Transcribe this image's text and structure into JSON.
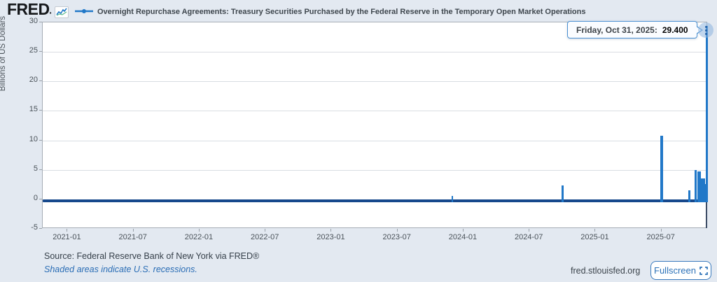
{
  "header": {
    "logo": "FRED",
    "series_title": "Overnight Repurchase Agreements: Treasury Securities Purchased by the Federal Reserve in the Temporary Open Market Operations"
  },
  "tooltip": {
    "date_label": "Friday, Oct 31, 2025:",
    "value": "29.400"
  },
  "chart_data": {
    "type": "line",
    "series_name": "Overnight Repurchase Agreements: Treasury Securities Purchased by the Federal Reserve in the Temporary Open Market Operations",
    "ylabel": "Billions of US Dollars",
    "ylim": [
      -5,
      30
    ],
    "y_ticks": [
      30,
      25,
      20,
      15,
      10,
      5,
      0,
      -5
    ],
    "x_ticks": [
      "2021-01",
      "2021-07",
      "2022-01",
      "2022-07",
      "2023-01",
      "2023-07",
      "2024-01",
      "2024-07",
      "2025-01",
      "2025-07"
    ],
    "grid": true,
    "legend_position": "top",
    "baseline_value": -0.25,
    "series_color": "#2178c8",
    "baseline_color": "#16488c",
    "spikes": [
      {
        "date": "2023-11",
        "t": 35.0,
        "value": 0.6,
        "w": 2
      },
      {
        "date": "2024-10",
        "t": 45.0,
        "value": 2.3,
        "w": 3
      },
      {
        "date": "2025-06-30",
        "t": 54.0,
        "value": 10.8,
        "w": 4
      },
      {
        "date": "2025-09-15",
        "t": 56.5,
        "value": 1.5,
        "w": 3
      },
      {
        "date": "2025-10-01",
        "t": 57.1,
        "value": 5.0,
        "w": 3
      },
      {
        "date": "2025-10-10",
        "t": 57.45,
        "value": 4.7,
        "w": 5
      },
      {
        "date": "2025-10-20",
        "t": 57.75,
        "value": 3.6,
        "w": 6
      },
      {
        "date": "2025-10-28",
        "t": 57.95,
        "value": 2.6,
        "w": 4
      },
      {
        "date": "2025-10-31",
        "t": 58.1,
        "value": 29.4,
        "w": 3,
        "hovered": true
      }
    ],
    "hover_point": {
      "date": "Friday, Oct 31, 2025",
      "value": 29.4
    }
  },
  "footer": {
    "source": "Source: Federal Reserve Bank of New York via FRED®",
    "recession_note": "Shaded areas indicate U.S. recessions.",
    "site": "fred.stlouisfed.org",
    "fullscreen_label": "Fullscreen"
  },
  "icons": {
    "logo_chart_icon": "chart-zigzag",
    "legend_marker": "line-with-dot",
    "kebab_menu": "vertical-three-dots",
    "fullscreen_icon": "expand-corners"
  },
  "colors": {
    "background": "#e3e9f1",
    "plot_background": "#ffffff",
    "series_blue": "#2178c8",
    "baseline_navy": "#16488c",
    "tooltip_border": "#4a90d2",
    "link_blue": "#2a6db5",
    "button_blue": "#2d72b8"
  }
}
